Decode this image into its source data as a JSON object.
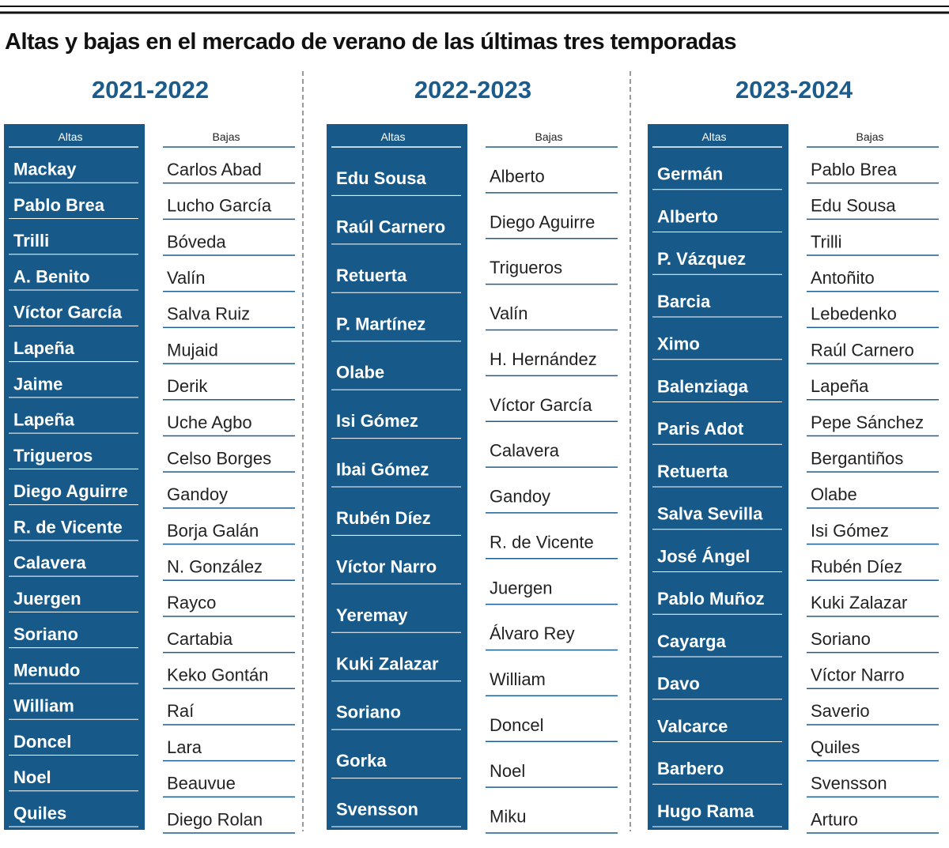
{
  "title": "Altas y bajas en el mercado de verano de las últimas tres temporadas",
  "seasons": [
    {
      "season": "2021-2022",
      "altas": {
        "label": "Altas",
        "names": [
          "Mackay",
          "Pablo Brea",
          "Trilli",
          "A. Benito",
          "Víctor García",
          "Lapeña",
          "Jaime",
          "Lapeña",
          "Trigueros",
          "Diego Aguirre",
          "R. de Vicente",
          "Calavera",
          "Juergen",
          "Soriano",
          "Menudo",
          "William",
          "Doncel",
          "Noel",
          "Quiles"
        ]
      },
      "bajas": {
        "label": "Bajas",
        "names": [
          "Carlos Abad",
          "Lucho García",
          "Bóveda",
          "Valín",
          "Salva Ruiz",
          "Mujaid",
          "Derik",
          "Uche Agbo",
          "Celso Borges",
          "Gandoy",
          "Borja Galán",
          "N. González",
          "Rayco",
          "Cartabia",
          "Keko Gontán",
          "Raí",
          "Lara",
          "Beauvue",
          "Diego Rolan"
        ]
      }
    },
    {
      "season": "2022-2023",
      "altas": {
        "label": "Altas",
        "names": [
          "Edu Sousa",
          "Raúl Carnero",
          "Retuerta",
          "P. Martínez",
          "Olabe",
          "Isi Gómez",
          "Ibai Gómez",
          "Rubén Díez",
          "Víctor Narro",
          "Yeremay",
          "Kuki Zalazar",
          "Soriano",
          "Gorka",
          "Svensson"
        ]
      },
      "bajas": {
        "label": "Bajas",
        "names": [
          "Alberto",
          "Diego Aguirre",
          "Trigueros",
          "Valín",
          "H. Hernández",
          "Víctor García",
          "Calavera",
          "Gandoy",
          "R. de Vicente",
          "Juergen",
          "Álvaro Rey",
          "William",
          "Doncel",
          "Noel",
          "Miku"
        ]
      }
    },
    {
      "season": "2023-2024",
      "altas": {
        "label": "Altas",
        "names": [
          "Germán",
          "Alberto",
          "P. Vázquez",
          "Barcia",
          "Ximo",
          "Balenziaga",
          "Paris Adot",
          "Retuerta",
          "Salva Sevilla",
          "José Ángel",
          "Pablo Muñoz",
          "Cayarga",
          "Davo",
          "Valcarce",
          "Barbero",
          "Hugo Rama"
        ]
      },
      "bajas": {
        "label": "Bajas",
        "names": [
          "Pablo Brea",
          "Edu Sousa",
          "Trilli",
          "Antoñito",
          "Lebedenko",
          "Raúl Carnero",
          "Lapeña",
          "Pepe Sánchez",
          "Bergantiños",
          "Olabe",
          "Isi Gómez",
          "Rubén Díez",
          "Kuki Zalazar",
          "Soriano",
          "Víctor Narro",
          "Saverio",
          "Quiles",
          "Svensson",
          "Arturo"
        ]
      }
    }
  ]
}
